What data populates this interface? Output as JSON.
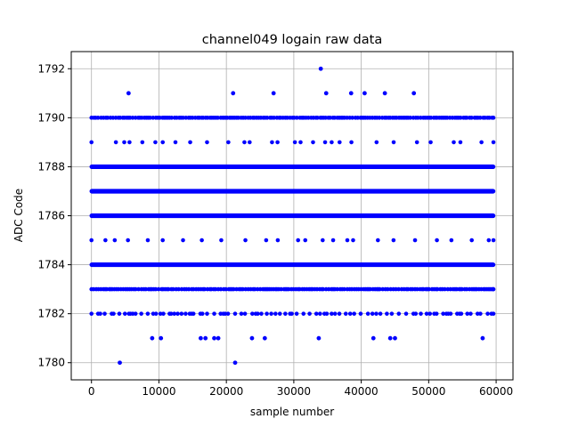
{
  "chart_data": {
    "type": "scatter",
    "title": "channel049 logain raw data",
    "xlabel": "sample number",
    "ylabel": "ADC Code",
    "xlim": [
      -3000,
      62500
    ],
    "ylim": [
      1779.3,
      1792.7
    ],
    "xticks": [
      0,
      10000,
      20000,
      30000,
      40000,
      50000,
      60000
    ],
    "xtick_labels": [
      "0",
      "10000",
      "20000",
      "30000",
      "40000",
      "50000",
      "60000"
    ],
    "yticks": [
      1780,
      1782,
      1784,
      1786,
      1788,
      1790,
      1792
    ],
    "ytick_labels": [
      "1780",
      "1782",
      "1784",
      "1786",
      "1788",
      "1790",
      "1792"
    ],
    "grid": true,
    "marker_color": "#0000ff",
    "sample_range": [
      0,
      59600
    ],
    "series": [
      {
        "levels": [
          {
            "y": 1790,
            "density": "dense"
          },
          {
            "y": 1788,
            "density": "solid"
          },
          {
            "y": 1787,
            "density": "solid"
          },
          {
            "y": 1786,
            "density": "solid"
          },
          {
            "y": 1784,
            "density": "solid"
          },
          {
            "y": 1783,
            "density": "dense"
          },
          {
            "y": 1782,
            "density": "medium"
          },
          {
            "y": 1785,
            "density": "sparse"
          },
          {
            "y": 1789,
            "density": "sparse"
          }
        ],
        "points": [
          {
            "x": 5500,
            "y": 1791
          },
          {
            "x": 21000,
            "y": 1791
          },
          {
            "x": 27000,
            "y": 1791
          },
          {
            "x": 34000,
            "y": 1792
          },
          {
            "x": 34800,
            "y": 1791
          },
          {
            "x": 38500,
            "y": 1791
          },
          {
            "x": 40500,
            "y": 1791
          },
          {
            "x": 43500,
            "y": 1791
          },
          {
            "x": 47800,
            "y": 1791
          },
          {
            "x": 9000,
            "y": 1781
          },
          {
            "x": 10300,
            "y": 1781
          },
          {
            "x": 16200,
            "y": 1781
          },
          {
            "x": 16900,
            "y": 1781
          },
          {
            "x": 18200,
            "y": 1781
          },
          {
            "x": 18800,
            "y": 1781
          },
          {
            "x": 23800,
            "y": 1781
          },
          {
            "x": 25700,
            "y": 1781
          },
          {
            "x": 33700,
            "y": 1781
          },
          {
            "x": 41800,
            "y": 1781
          },
          {
            "x": 44300,
            "y": 1781
          },
          {
            "x": 45000,
            "y": 1781
          },
          {
            "x": 58000,
            "y": 1781
          },
          {
            "x": 4200,
            "y": 1780
          },
          {
            "x": 21300,
            "y": 1780
          }
        ]
      }
    ]
  }
}
